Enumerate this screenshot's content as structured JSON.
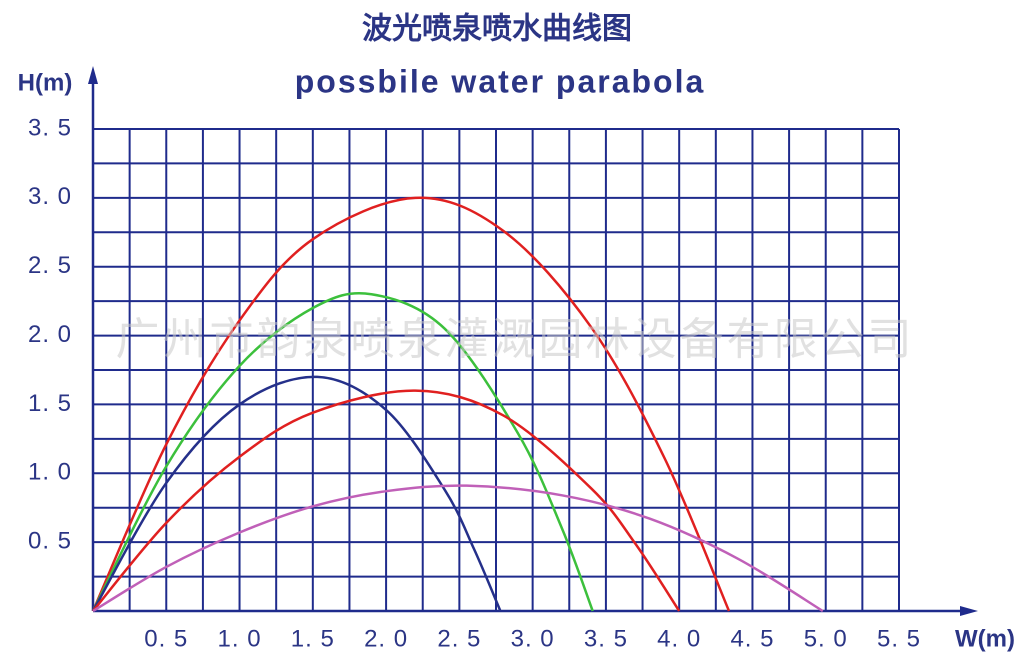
{
  "chart_data": {
    "type": "line",
    "title": "波光喷泉喷水曲线图",
    "subtitle": "possbile water parabola",
    "y_label": "H(m)",
    "x_label": "W(m)",
    "watermark": "广州市韵泉喷泉灌溉园林设备有限公司",
    "xlim": [
      0,
      5.5
    ],
    "ylim": [
      0,
      3.5
    ],
    "xticks": [
      {
        "value": 0.5,
        "label": "0. 5"
      },
      {
        "value": 1.0,
        "label": "1. 0"
      },
      {
        "value": 1.5,
        "label": "1. 5"
      },
      {
        "value": 2.0,
        "label": "2. 0"
      },
      {
        "value": 2.5,
        "label": "2. 5"
      },
      {
        "value": 3.0,
        "label": "3. 0"
      },
      {
        "value": 3.5,
        "label": "3. 5"
      },
      {
        "value": 4.0,
        "label": "4. 0"
      },
      {
        "value": 4.5,
        "label": "4. 5"
      },
      {
        "value": 5.0,
        "label": "5. 0"
      },
      {
        "value": 5.5,
        "label": "5. 5"
      }
    ],
    "yticks": [
      {
        "value": 0.5,
        "label": "0. 5"
      },
      {
        "value": 1.0,
        "label": "1. 0"
      },
      {
        "value": 1.5,
        "label": "1. 5"
      },
      {
        "value": 2.0,
        "label": "2. 0"
      },
      {
        "value": 2.5,
        "label": "2. 5"
      },
      {
        "value": 3.0,
        "label": "3. 0"
      },
      {
        "value": 3.5,
        "label": "3. 5"
      }
    ],
    "grid": true,
    "grid_color": "#1f2b8c",
    "series": [
      {
        "color": "#e02020",
        "x": [
          0,
          0.5,
          1,
          1.5,
          2.2,
          2.8,
          3.4,
          3.9,
          4.34
        ],
        "values": [
          0,
          1.21,
          2.11,
          2.7,
          3.0,
          2.76,
          2.06,
          1.11,
          0
        ]
      },
      {
        "color": "#3cc03c",
        "x": [
          0,
          0.5,
          1,
          1.5,
          1.9,
          2.4,
          2.9,
          3.2,
          3.41
        ],
        "values": [
          0,
          1.05,
          1.78,
          2.2,
          2.3,
          2.05,
          1.29,
          0.6,
          0
        ]
      },
      {
        "color": "#25308a",
        "x": [
          0,
          0.5,
          1,
          1.53,
          2.0,
          2.4,
          2.6,
          2.78
        ],
        "values": [
          0,
          0.93,
          1.5,
          1.7,
          1.46,
          0.88,
          0.45,
          0
        ]
      },
      {
        "color": "#e02020",
        "x": [
          0,
          0.5,
          1,
          1.5,
          2.2,
          2.8,
          3.4,
          3.7,
          4.0
        ],
        "values": [
          0,
          0.64,
          1.12,
          1.44,
          1.6,
          1.42,
          0.89,
          0.49,
          0
        ]
      },
      {
        "color": "#c060b8",
        "x": [
          0,
          0.5,
          1,
          1.5,
          2.0,
          2.55,
          3.2,
          3.8,
          4.4,
          4.98
        ],
        "values": [
          0,
          0.32,
          0.57,
          0.76,
          0.87,
          0.91,
          0.84,
          0.67,
          0.38,
          0
        ]
      }
    ]
  }
}
